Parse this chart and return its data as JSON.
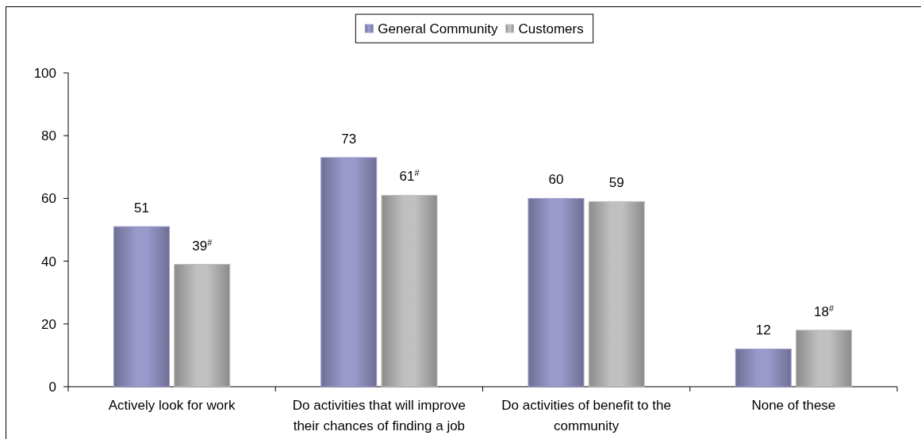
{
  "chart_data": {
    "type": "bar",
    "categories": [
      "Actively look for work",
      "Do activities that will improve their chances of finding a job",
      "Do activities of benefit to the community",
      "None of these"
    ],
    "series": [
      {
        "name": "General Community",
        "color": "#9999cc",
        "values": [
          51,
          73,
          60,
          12
        ],
        "value_labels": [
          "51",
          "73",
          "60",
          "12"
        ]
      },
      {
        "name": "Customers",
        "color": "#c0c0c0",
        "values": [
          39,
          61,
          59,
          18
        ],
        "value_labels": [
          "39$^{#}$",
          "61$^{#}$",
          "59",
          "18$^{#}$"
        ]
      }
    ],
    "ylim": [
      0,
      100
    ],
    "yticks": [
      0,
      20,
      40,
      60,
      80,
      100
    ],
    "legend": "top"
  }
}
